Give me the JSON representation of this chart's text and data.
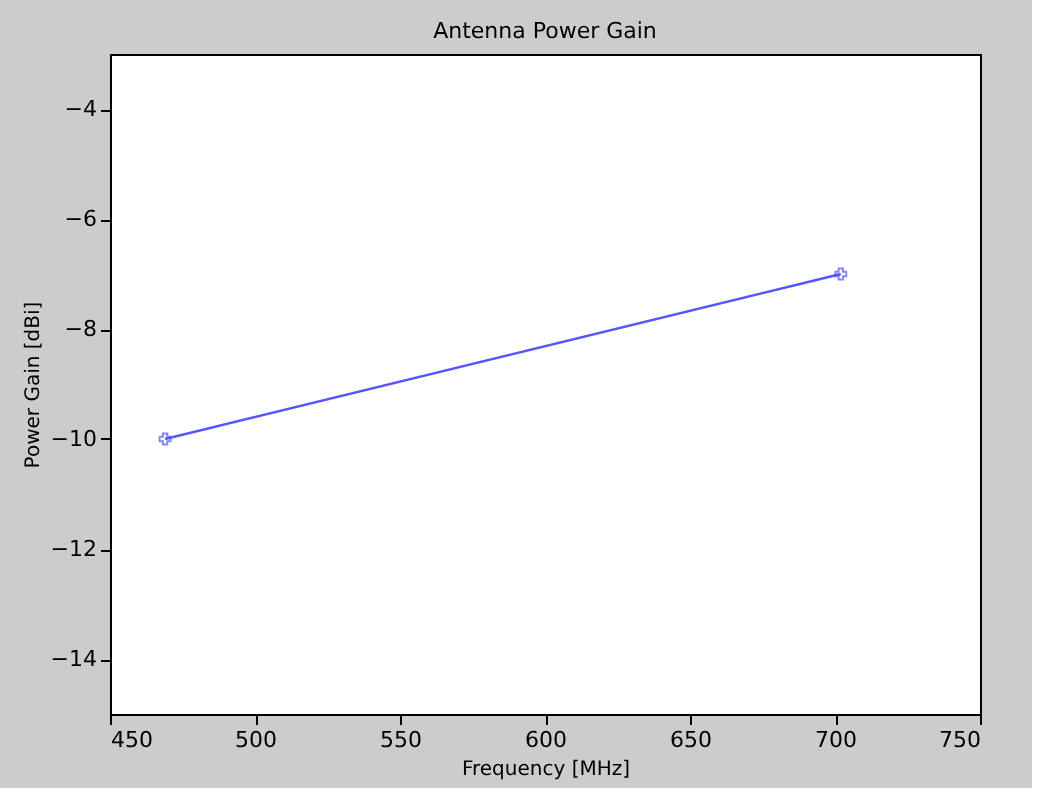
{
  "chart_data": {
    "type": "line",
    "title": "Antenna Power Gain",
    "xlabel": "Frequency [MHz]",
    "ylabel": "Power Gain [dBi]",
    "x": [
      469,
      702
    ],
    "series": [
      {
        "color": "#5555ff",
        "values": [
          -10,
          -7
        ]
      }
    ],
    "xlim": [
      450,
      750
    ],
    "xticks": [
      450,
      500,
      550,
      600,
      650,
      700,
      750
    ],
    "ylim": [
      -15,
      -3
    ],
    "yticks": [
      -14,
      -12,
      -10,
      -8,
      -6,
      -4
    ],
    "marker": "cross",
    "line_style": "solid",
    "grid": false
  }
}
